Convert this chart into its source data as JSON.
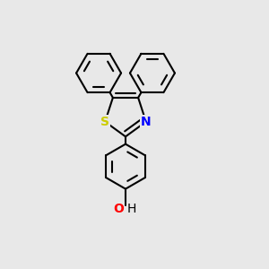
{
  "background_color": "#e8e8e8",
  "bond_color": "#000000",
  "bond_width": 1.5,
  "atom_labels": {
    "S": {
      "color": "#cccc00",
      "fontsize": 10,
      "fontweight": "bold"
    },
    "N": {
      "color": "#0000ff",
      "fontsize": 10,
      "fontweight": "bold"
    },
    "O": {
      "color": "#ff0000",
      "fontsize": 10,
      "fontweight": "bold"
    },
    "H": {
      "color": "#000000",
      "fontsize": 10,
      "fontweight": "normal"
    }
  },
  "figsize": [
    3.0,
    3.0
  ],
  "dpi": 100
}
